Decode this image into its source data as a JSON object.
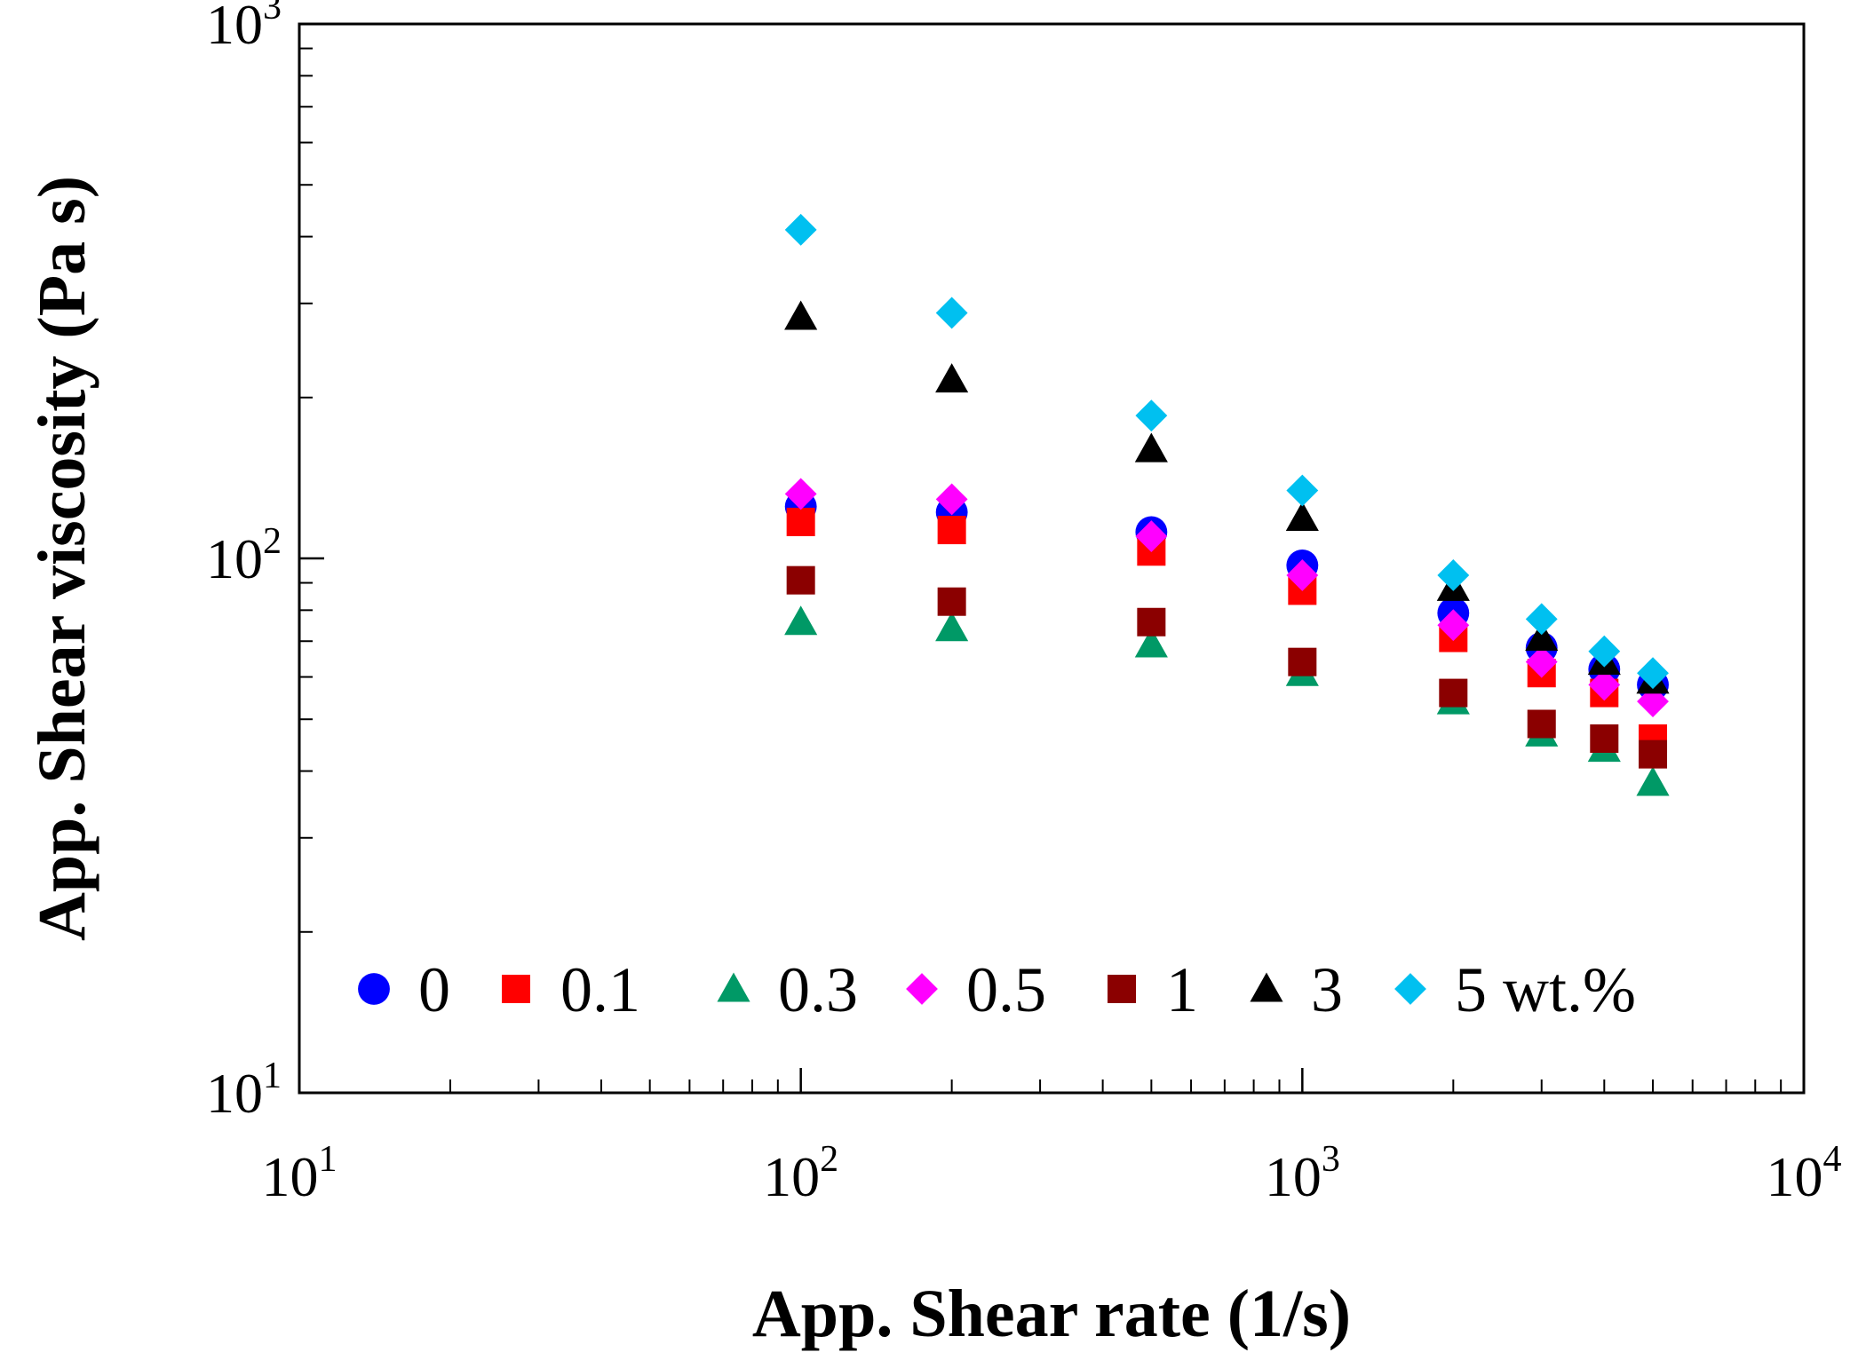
{
  "chart_data": {
    "type": "scatter",
    "title": "",
    "xlabel": "App. Shear rate (1/s)",
    "ylabel": "App. Shear viscosity (Pa s)",
    "xscale": "log",
    "yscale": "log",
    "xlim": [
      10,
      10000
    ],
    "ylim": [
      10,
      1000
    ],
    "grid": false,
    "legend_position": "bottom-inside",
    "x_ticks": [
      {
        "value": 10,
        "base": "10",
        "exp": "1"
      },
      {
        "value": 100,
        "base": "10",
        "exp": "2"
      },
      {
        "value": 1000,
        "base": "10",
        "exp": "3"
      },
      {
        "value": 10000,
        "base": "10",
        "exp": "4"
      }
    ],
    "y_ticks": [
      {
        "value": 10,
        "base": "10",
        "exp": "1"
      },
      {
        "value": 100,
        "base": "10",
        "exp": "2"
      },
      {
        "value": 1000,
        "base": "10",
        "exp": "3"
      }
    ],
    "x": [
      100,
      200,
      500,
      1000,
      2000,
      3000,
      4000,
      5000
    ],
    "series": [
      {
        "name": "0",
        "marker": "circle",
        "color": "#0000ff",
        "values": [
          125,
          122,
          112,
          97,
          79,
          68,
          62,
          58
        ]
      },
      {
        "name": "0.1",
        "marker": "square",
        "color": "#ff0000",
        "values": [
          117,
          113,
          103,
          87,
          71,
          61,
          56,
          46
        ]
      },
      {
        "name": "0.3",
        "marker": "triangle",
        "color": "#009966",
        "values": [
          76,
          74,
          69,
          61,
          54,
          47,
          44,
          38
        ]
      },
      {
        "name": "0.5",
        "marker": "diamond",
        "color": "#ff00ff",
        "values": [
          132,
          129,
          110,
          93,
          75,
          64,
          58,
          54
        ]
      },
      {
        "name": "1",
        "marker": "square",
        "color": "#8b0000",
        "values": [
          91,
          83,
          76,
          64,
          56,
          49,
          46,
          43
        ]
      },
      {
        "name": "3",
        "marker": "triangle",
        "color": "#000000",
        "values": [
          283,
          216,
          160,
          119,
          88,
          71,
          64,
          59
        ]
      },
      {
        "name": "5 wt.%",
        "marker": "diamond",
        "color": "#00c0f0",
        "values": [
          412,
          288,
          185,
          134,
          93,
          77,
          67,
          61
        ]
      }
    ]
  }
}
